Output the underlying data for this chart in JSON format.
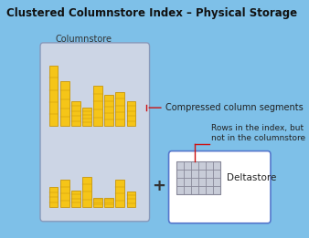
{
  "title": "Clustered Columnstore Index – Physical Storage",
  "bg_color": "#7ec0e8",
  "columnstore_label": "Columnstore",
  "compressed_label": "Compressed column segments",
  "deltastore_label": "Deltastore",
  "rows_label": "Rows in the index, but\nnot in the columnstore",
  "plus_symbol": "+",
  "bar_color": "#f5c518",
  "bar_edge_color": "#c8960a",
  "bar_grid_color": "#c8960a",
  "group1_bars": [
    0.92,
    0.68,
    0.38,
    0.28,
    0.62,
    0.48,
    0.52,
    0.38
  ],
  "group2_bars": [
    0.38,
    0.52,
    0.32,
    0.58,
    0.18,
    0.18,
    0.52,
    0.3
  ],
  "col_box_facecolor": "#ccd5e5",
  "col_box_edgecolor": "#8899bb",
  "delta_box_facecolor": "#ffffff",
  "delta_box_edgecolor": "#5577cc",
  "grid_facecolor": "#c8ccd8",
  "grid_linecolor": "#888899",
  "grid_rows": 4,
  "grid_cols": 6,
  "arrow_color": "#cc1111",
  "title_fontsize": 8.5,
  "label_fontsize": 7,
  "small_fontsize": 6.5,
  "plus_fontsize": 13
}
